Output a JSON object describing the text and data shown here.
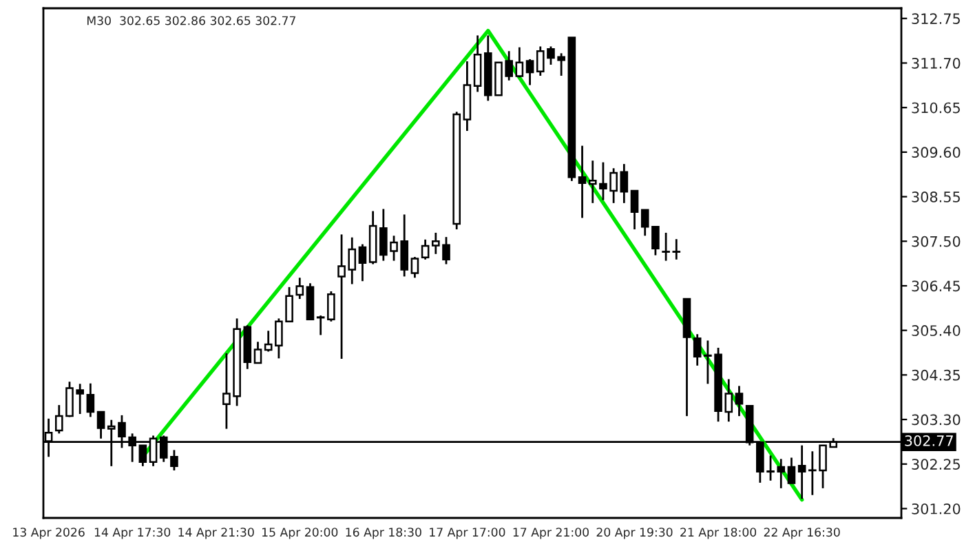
{
  "chart_data": {
    "type": "candlestick",
    "title": "M30  302.65 302.86 302.65 302.77",
    "categories": [
      "13 Apr 2026",
      null,
      null,
      null,
      null,
      null,
      null,
      null,
      "14 Apr 17:30",
      null,
      null,
      null,
      null,
      null,
      null,
      null,
      "14 Apr 21:30",
      null,
      null,
      null,
      null,
      null,
      null,
      null,
      "15 Apr 20:00",
      null,
      null,
      null,
      null,
      null,
      null,
      null,
      "16 Apr 18:30",
      null,
      null,
      null,
      null,
      null,
      null,
      null,
      "17 Apr 17:00",
      null,
      null,
      null,
      null,
      null,
      null,
      null,
      "17 Apr 21:00",
      null,
      null,
      null,
      null,
      null,
      null,
      null,
      "20 Apr 19:30",
      null,
      null,
      null,
      null,
      null,
      null,
      null,
      "21 Apr 18:00",
      null,
      null,
      null,
      null,
      null,
      null,
      null,
      "22 Apr 16:30",
      null,
      null,
      null
    ],
    "ohlc": [
      [
        302.79,
        303.32,
        302.42,
        302.99
      ],
      [
        303.04,
        303.64,
        302.97,
        303.38
      ],
      [
        303.38,
        304.19,
        303.36,
        304.04
      ],
      [
        303.99,
        304.14,
        303.43,
        303.91
      ],
      [
        303.88,
        304.15,
        303.36,
        303.48
      ],
      [
        303.48,
        303.48,
        302.85,
        303.1
      ],
      [
        303.08,
        303.29,
        302.2,
        303.14
      ],
      [
        303.22,
        303.4,
        302.63,
        302.9
      ],
      [
        302.88,
        302.97,
        302.3,
        302.69
      ],
      [
        302.69,
        302.69,
        302.2,
        302.3
      ],
      [
        302.3,
        302.92,
        302.2,
        302.85
      ],
      [
        302.88,
        302.92,
        302.3,
        302.4
      ],
      [
        302.42,
        302.58,
        302.1,
        302.2
      ],
      null,
      null,
      null,
      null,
      [
        303.66,
        304.86,
        303.08,
        303.91
      ],
      [
        303.85,
        305.68,
        303.62,
        305.43
      ],
      [
        305.48,
        305.52,
        304.49,
        304.65
      ],
      [
        304.63,
        305.13,
        304.62,
        304.95
      ],
      [
        304.94,
        305.39,
        304.9,
        305.07
      ],
      [
        305.04,
        305.68,
        304.74,
        305.61
      ],
      [
        305.61,
        306.42,
        305.59,
        306.21
      ],
      [
        306.24,
        306.64,
        306.14,
        306.44
      ],
      [
        306.42,
        306.51,
        305.64,
        305.66
      ],
      [
        305.7,
        305.75,
        305.29,
        305.71
      ],
      [
        305.66,
        306.32,
        305.61,
        306.25
      ],
      [
        306.67,
        307.66,
        304.73,
        306.91
      ],
      [
        306.83,
        307.59,
        306.49,
        307.31
      ],
      [
        307.36,
        307.43,
        306.56,
        306.99
      ],
      [
        307.01,
        308.21,
        306.96,
        307.86
      ],
      [
        307.81,
        308.26,
        307.04,
        307.18
      ],
      [
        307.27,
        307.63,
        307.04,
        307.47
      ],
      [
        307.5,
        308.13,
        306.67,
        306.83
      ],
      [
        306.75,
        307.13,
        306.64,
        307.09
      ],
      [
        307.12,
        307.54,
        307.07,
        307.39
      ],
      [
        307.4,
        307.7,
        307.2,
        307.5
      ],
      [
        307.41,
        307.6,
        306.96,
        307.07
      ],
      [
        307.91,
        310.55,
        307.78,
        310.49
      ],
      [
        310.37,
        311.74,
        310.1,
        311.18
      ],
      [
        311.16,
        312.35,
        311.02,
        311.9
      ],
      [
        311.93,
        312.35,
        310.81,
        310.94
      ],
      [
        310.94,
        311.71,
        310.94,
        311.71
      ],
      [
        311.75,
        311.98,
        311.29,
        311.39
      ],
      [
        311.39,
        312.07,
        311.36,
        311.71
      ],
      [
        311.75,
        311.79,
        311.18,
        311.48
      ],
      [
        311.5,
        312.09,
        311.4,
        311.98
      ],
      [
        312.03,
        312.09,
        311.66,
        311.82
      ],
      [
        311.84,
        311.93,
        311.4,
        311.77
      ],
      [
        312.3,
        312.3,
        308.92,
        309.01
      ],
      [
        309.01,
        309.75,
        308.05,
        308.87
      ],
      [
        308.85,
        309.4,
        308.4,
        308.93
      ],
      [
        308.85,
        309.36,
        308.47,
        308.74
      ],
      [
        308.69,
        309.22,
        308.4,
        309.11
      ],
      [
        309.13,
        309.32,
        308.4,
        308.67
      ],
      [
        308.69,
        308.69,
        307.78,
        308.19
      ],
      [
        308.24,
        308.24,
        307.63,
        307.84
      ],
      [
        307.84,
        307.84,
        307.17,
        307.33
      ],
      [
        307.25,
        307.7,
        307.04,
        307.25
      ],
      [
        307.25,
        307.55,
        307.07,
        307.25
      ],
      [
        306.14,
        306.14,
        303.38,
        305.24
      ],
      [
        305.21,
        305.31,
        304.57,
        304.78
      ],
      [
        304.81,
        305.16,
        304.14,
        304.8
      ],
      [
        304.83,
        304.99,
        303.25,
        303.5
      ],
      [
        303.48,
        304.25,
        303.25,
        303.91
      ],
      [
        303.91,
        304.09,
        303.38,
        303.67
      ],
      [
        303.62,
        303.64,
        302.69,
        302.76
      ],
      [
        302.76,
        302.76,
        301.81,
        302.07
      ],
      [
        302.08,
        302.45,
        301.86,
        302.07
      ],
      [
        302.18,
        302.37,
        301.68,
        302.07
      ],
      [
        302.18,
        302.4,
        301.8,
        301.8
      ],
      [
        302.21,
        302.69,
        301.43,
        302.07
      ],
      [
        302.1,
        302.55,
        301.52,
        302.1
      ],
      [
        302.1,
        302.69,
        301.68,
        302.69
      ],
      [
        302.65,
        302.86,
        302.65,
        302.77
      ]
    ],
    "series": [
      {
        "type": "line",
        "color": "#00e600",
        "values": [
          null,
          null,
          null,
          null,
          null,
          null,
          null,
          null,
          null,
          302.43,
          null,
          null,
          null,
          null,
          null,
          null,
          null,
          null,
          null,
          null,
          null,
          null,
          null,
          null,
          null,
          null,
          null,
          null,
          null,
          null,
          null,
          null,
          null,
          null,
          null,
          null,
          null,
          null,
          null,
          null,
          null,
          null,
          312.46,
          null,
          null,
          null,
          null,
          null,
          null,
          null,
          null,
          null,
          null,
          null,
          null,
          null,
          null,
          null,
          null,
          null,
          null,
          null,
          null,
          null,
          null,
          null,
          null,
          null,
          null,
          null,
          null,
          null,
          301.41,
          null,
          null,
          null
        ]
      }
    ],
    "ylim": [
      300.98,
      312.99
    ],
    "yticks": [
      {
        "value": 301.2,
        "label": "301.20"
      },
      {
        "value": 302.25,
        "label": "302.25"
      },
      {
        "value": 303.3,
        "label": "303.30"
      },
      {
        "value": 304.35,
        "label": "304.35"
      },
      {
        "value": 305.4,
        "label": "305.40"
      },
      {
        "value": 306.45,
        "label": "306.45"
      },
      {
        "value": 307.5,
        "label": "307.50"
      },
      {
        "value": 308.55,
        "label": "308.55"
      },
      {
        "value": 309.6,
        "label": "309.60"
      },
      {
        "value": 310.65,
        "label": "310.65"
      },
      {
        "value": 311.7,
        "label": "311.70"
      },
      {
        "value": 312.75,
        "label": "312.75"
      }
    ],
    "ref_lines": [
      {
        "axis": "y",
        "value": 302.77,
        "label": "302.77",
        "color": "#000000"
      }
    ],
    "grid": false,
    "legend": false
  }
}
